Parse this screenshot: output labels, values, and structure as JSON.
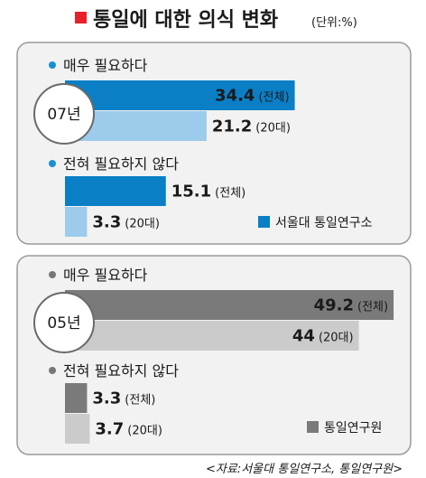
{
  "title": "통일에 대한 의식 변화",
  "unit": "(단위:%)",
  "source": "<자료:서울대 통일연구소, 통일연구원>",
  "colors": {
    "title_marker": "#e8202a",
    "panel_bg": "#f2f2f2",
    "panel_border": "#9a9a9a",
    "blue_total": "#0a7fc6",
    "blue_20s": "#9ccbeb",
    "gray_total": "#7a7a7a",
    "gray_20s": "#cbcbcb",
    "bullet_blue": "#1a8fd1",
    "bullet_gray": "#777777"
  },
  "chart_data": [
    {
      "type": "bar",
      "year_label": "07년",
      "legend": "서울대 통일연구소",
      "groups": [
        {
          "question": "매우 필요하다",
          "bars": [
            {
              "name": "(전체)",
              "value": 34.4
            },
            {
              "name": "(20대)",
              "value": 21.2
            }
          ]
        },
        {
          "question": "전혀 필요하지 않다",
          "bars": [
            {
              "name": "(전체)",
              "value": 15.1
            },
            {
              "name": "(20대)",
              "value": 3.3
            }
          ]
        }
      ]
    },
    {
      "type": "bar",
      "year_label": "05년",
      "legend": "통일연구원",
      "groups": [
        {
          "question": "매우 필요하다",
          "bars": [
            {
              "name": "(전체)",
              "value": 49.2
            },
            {
              "name": "(20대)",
              "value": 44
            }
          ]
        },
        {
          "question": "전혀 필요하지 않다",
          "bars": [
            {
              "name": "(전체)",
              "value": 3.3
            },
            {
              "name": "(20대)",
              "value": 3.7
            }
          ]
        }
      ]
    }
  ]
}
